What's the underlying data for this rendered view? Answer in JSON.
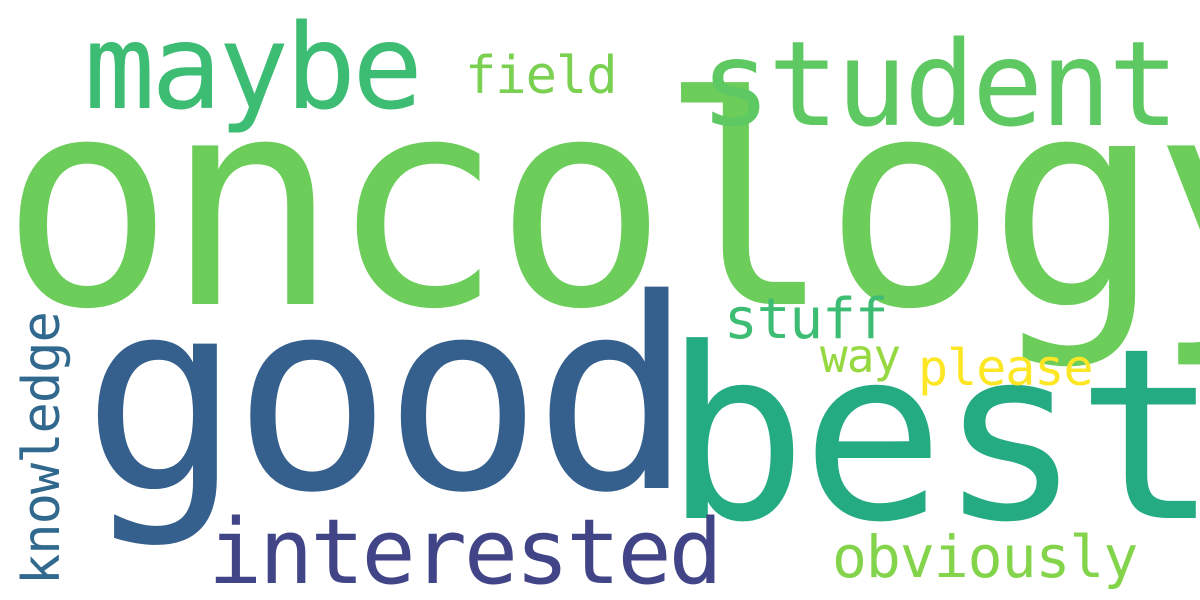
{
  "words": {
    "oncology": {
      "text": "oncology",
      "color": "#6ccd5a"
    },
    "good": {
      "text": "good",
      "color": "#355f8d"
    },
    "best": {
      "text": "best",
      "color": "#25ab82"
    },
    "maybe": {
      "text": "maybe",
      "color": "#3dbc74"
    },
    "student": {
      "text": "student",
      "color": "#5ec962"
    },
    "field": {
      "text": "field",
      "color": "#7ad151"
    },
    "interested": {
      "text": "interested",
      "color": "#414487"
    },
    "obviously": {
      "text": "obviously",
      "color": "#84d44b"
    },
    "stuff": {
      "text": "stuff",
      "color": "#3dbc74"
    },
    "way": {
      "text": "way",
      "color": "#95d840"
    },
    "please": {
      "text": "please",
      "color": "#fde725"
    },
    "knowledge": {
      "text": "knowledge",
      "color": "#31688e"
    }
  }
}
